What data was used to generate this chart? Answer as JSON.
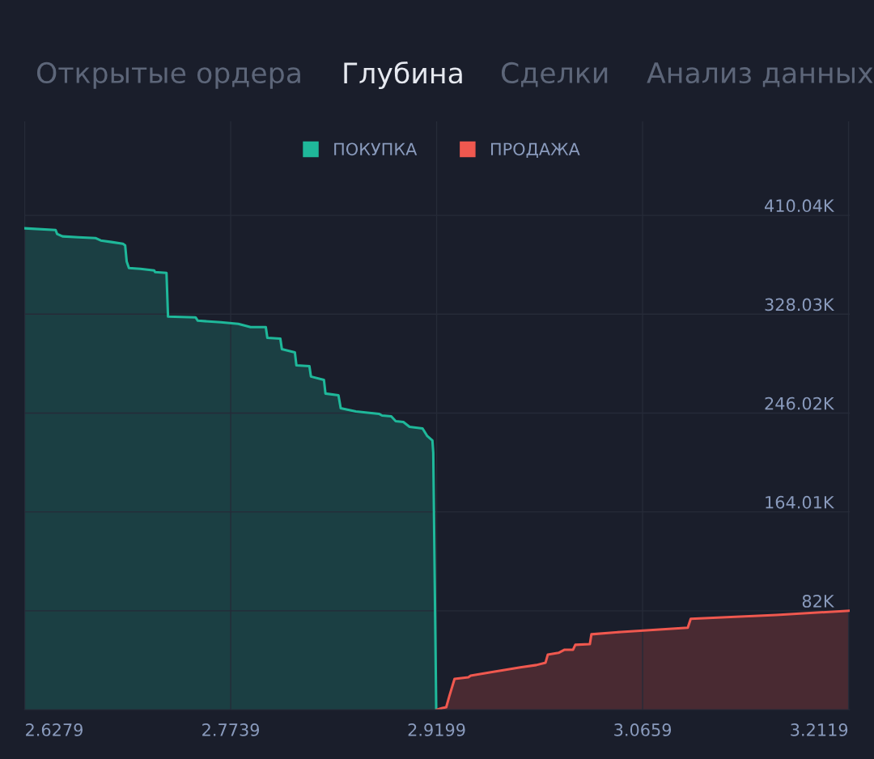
{
  "chart_data": {
    "type": "area",
    "title": "Глубина",
    "annotations": [
      "Открытые ордера",
      "Сделки",
      "Анализ данных"
    ],
    "series": [
      {
        "name": "ПОКУПКА",
        "color": "#1fb89a",
        "x": [
          2.6276,
          2.6498,
          2.6509,
          2.6547,
          2.6661,
          2.678,
          2.6818,
          2.6894,
          2.6975,
          2.6991,
          2.7002,
          2.7018,
          2.71,
          2.7197,
          2.7203,
          2.7284,
          2.7295,
          2.749,
          2.7506,
          2.7669,
          2.7793,
          2.788,
          2.7988,
          2.7999,
          2.8091,
          2.8102,
          2.8194,
          2.8205,
          2.8297,
          2.8308,
          2.84,
          2.8411,
          2.8503,
          2.8519,
          2.8627,
          2.879,
          2.8812,
          2.8877,
          2.8909,
          2.8963,
          2.9007,
          2.9099,
          2.9131,
          2.9169,
          2.9175,
          2.9196
        ],
        "values": [
          399300,
          397900,
          394600,
          392600,
          391900,
          391200,
          389200,
          387900,
          386500,
          385200,
          371700,
          366300,
          365700,
          364300,
          363000,
          362300,
          326000,
          325400,
          322700,
          321300,
          320000,
          317300,
          317300,
          308500,
          307800,
          299100,
          296400,
          285600,
          284900,
          276300,
          273600,
          262200,
          260800,
          250100,
          247400,
          245400,
          244000,
          243300,
          239300,
          238600,
          234600,
          233300,
          227200,
          223200,
          213100,
          0
        ]
      },
      {
        "name": "ПРОДАЖА",
        "color": "#f0584f",
        "x": [
          2.9202,
          2.924,
          2.9267,
          2.9288,
          2.9326,
          2.9424,
          2.944,
          2.9575,
          2.9792,
          2.9906,
          2.9971,
          2.9987,
          3.0063,
          3.0106,
          3.0166,
          3.0182,
          3.0285,
          3.0296,
          3.0507,
          3.0979,
          3.1,
          3.1607,
          3.212
        ],
        "values": [
          0,
          1300,
          2000,
          10800,
          25500,
          26900,
          28200,
          30900,
          35000,
          37000,
          39000,
          45700,
          47100,
          49700,
          49700,
          53800,
          54400,
          62500,
          64500,
          67900,
          75300,
          78600,
          82000
        ]
      }
    ],
    "xlim": [
      2.6276,
      3.2127
    ],
    "xticks": [
      2.6279,
      2.7739,
      2.9199,
      3.0659,
      3.2119
    ],
    "ylim": [
      0,
      488000
    ],
    "yticks": [
      {
        "value": 82000,
        "label": "82K"
      },
      {
        "value": 164010,
        "label": "164.01K"
      },
      {
        "value": 246020,
        "label": "246.02K"
      },
      {
        "value": 328030,
        "label": "328.03K"
      },
      {
        "value": 410040,
        "label": "410.04K"
      }
    ],
    "grid": true,
    "legend": "top"
  }
}
